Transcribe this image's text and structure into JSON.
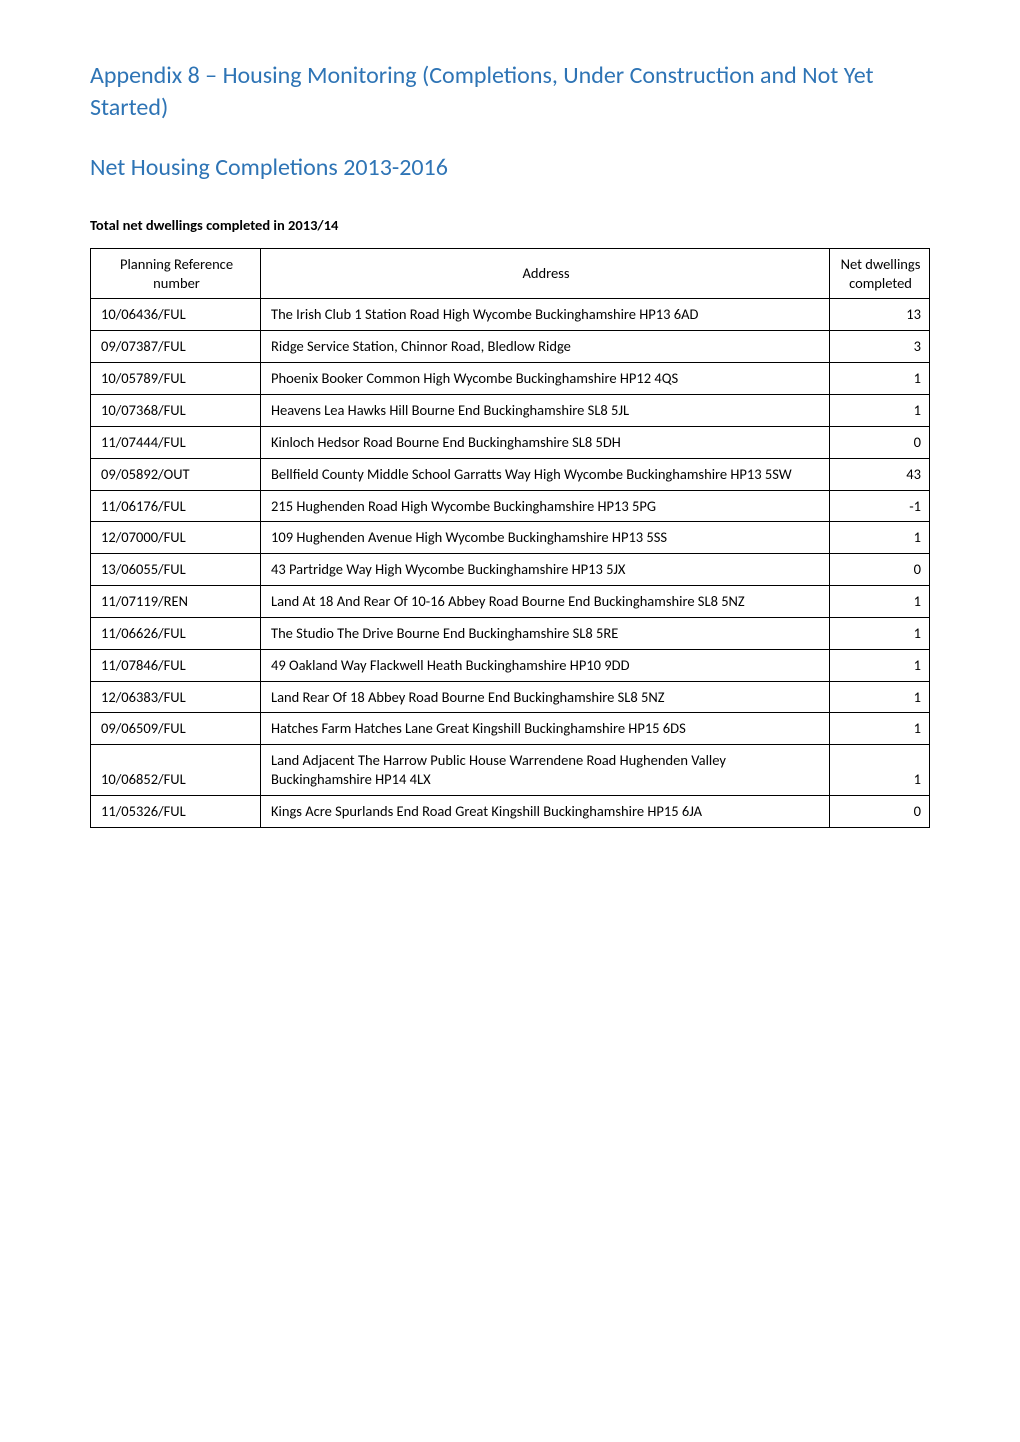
{
  "headings": {
    "main": "Appendix 8 – Housing Monitoring (Completions, Under Construction and Not Yet Started)",
    "sub": "Net Housing Completions 2013-2016",
    "table_label": "Total net dwellings completed in 2013/14",
    "main_color": "#2e74b5",
    "sub_color": "#2e74b5"
  },
  "table": {
    "headers": {
      "col1": "Planning Reference number",
      "col2": "Address",
      "col3": "Net dwellings completed"
    },
    "rows": [
      {
        "ref": "10/06436/FUL",
        "addr": "The Irish Club 1 Station Road High Wycombe Buckinghamshire HP13 6AD",
        "net": "13"
      },
      {
        "ref": "09/07387/FUL",
        "addr": "Ridge Service Station, Chinnor Road, Bledlow Ridge",
        "net": "3"
      },
      {
        "ref": "10/05789/FUL",
        "addr": "Phoenix Booker Common High Wycombe Buckinghamshire HP12 4QS",
        "net": "1"
      },
      {
        "ref": "10/07368/FUL",
        "addr": "Heavens Lea Hawks Hill Bourne End Buckinghamshire SL8 5JL",
        "net": "1"
      },
      {
        "ref": "11/07444/FUL",
        "addr": "Kinloch Hedsor Road Bourne End Buckinghamshire SL8 5DH",
        "net": "0"
      },
      {
        "ref": "09/05892/OUT",
        "addr": "Bellfield County Middle School Garratts Way High Wycombe Buckinghamshire HP13 5SW",
        "net": "43"
      },
      {
        "ref": "11/06176/FUL",
        "addr": "215 Hughenden Road High Wycombe Buckinghamshire HP13 5PG",
        "net": "-1"
      },
      {
        "ref": "12/07000/FUL",
        "addr": "109 Hughenden Avenue High Wycombe Buckinghamshire HP13 5SS",
        "net": "1"
      },
      {
        "ref": "13/06055/FUL",
        "addr": "43 Partridge Way High Wycombe Buckinghamshire HP13 5JX",
        "net": "0"
      },
      {
        "ref": "11/07119/REN",
        "addr": "Land At 18 And Rear Of 10-16  Abbey Road Bourne End Buckinghamshire SL8 5NZ",
        "net": "1"
      },
      {
        "ref": "11/06626/FUL",
        "addr": "The Studio The Drive Bourne End Buckinghamshire SL8 5RE",
        "net": "1"
      },
      {
        "ref": "11/07846/FUL",
        "addr": "49 Oakland Way Flackwell Heath Buckinghamshire HP10 9DD",
        "net": "1"
      },
      {
        "ref": "12/06383/FUL",
        "addr": "Land Rear Of 18 Abbey Road Bourne End Buckinghamshire SL8 5NZ",
        "net": "1"
      },
      {
        "ref": "09/06509/FUL",
        "addr": "Hatches Farm Hatches Lane Great Kingshill Buckinghamshire HP15 6DS",
        "net": "1"
      },
      {
        "ref": "10/06852/FUL",
        "addr": "Land Adjacent The Harrow Public House Warrendene Road Hughenden Valley Buckinghamshire HP14 4LX",
        "net": "1"
      },
      {
        "ref": "11/05326/FUL",
        "addr": "Kings Acre Spurlands End Road Great Kingshill Buckinghamshire HP15 6JA",
        "net": "0"
      }
    ]
  }
}
